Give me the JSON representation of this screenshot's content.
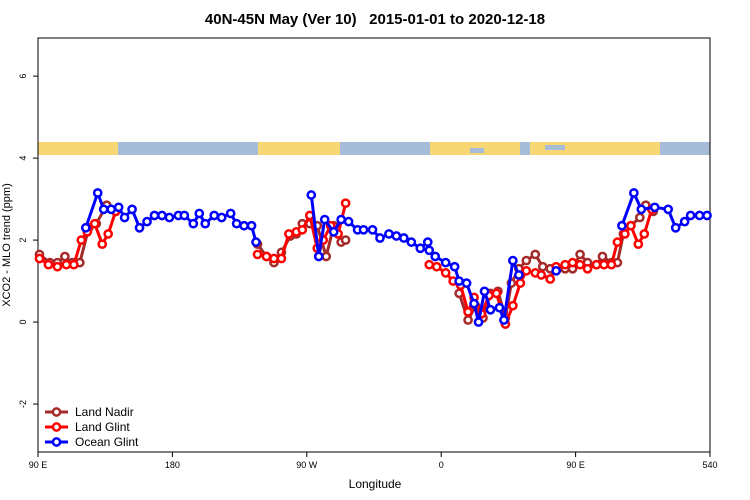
{
  "chart_data": {
    "type": "line",
    "title": "40N-45N May (Ver 10)   2015-01-01 to 2020-12-18",
    "x_label": "Longitude",
    "y_label": "XCO2 - MLO trend (ppm)",
    "xlim": [
      90,
      540
    ],
    "ylim": [
      -3.17,
      6.93
    ],
    "xticks": [
      {
        "value": 90,
        "label": "90 E"
      },
      180,
      {
        "value": 270,
        "label": "90 W"
      },
      {
        "value": 360,
        "label": "0"
      },
      {
        "value": 450,
        "label": "90 E"
      },
      540
    ],
    "yticks": [
      -2,
      0,
      2,
      4,
      6
    ],
    "legend": "bottom-left",
    "series": [
      {
        "name": "Land Nadir",
        "color": "#a52a2a",
        "x": [
          91,
          98,
          103,
          108,
          113,
          118,
          124,
          129,
          136,
          142,
          null,
          237,
          243,
          248,
          253,
          259,
          263,
          267,
          272,
          277,
          283,
          288,
          293,
          296,
          null,
          372,
          378,
          383,
          388,
          393,
          398,
          403,
          407,
          412,
          417,
          423,
          428,
          433,
          438,
          443,
          448,
          453,
          458,
          464,
          468,
          474,
          478,
          482,
          487,
          493,
          497,
          502
        ],
        "values": [
          1.65,
          1.45,
          1.45,
          1.6,
          1.45,
          1.45,
          2.3,
          2.4,
          2.85,
          2.7,
          null,
          1.9,
          1.6,
          1.45,
          1.7,
          2.1,
          2.15,
          2.4,
          2.4,
          2.35,
          1.6,
          2.35,
          1.95,
          2.0,
          null,
          0.7,
          0.05,
          0.4,
          0.1,
          0.7,
          0.75,
          0.1,
          0.95,
          1.3,
          1.5,
          1.65,
          1.35,
          1.3,
          1.3,
          1.3,
          1.3,
          1.65,
          1.45,
          1.4,
          1.6,
          1.45,
          1.45,
          2.15,
          2.35,
          2.55,
          2.85,
          2.7
        ]
      },
      {
        "name": "Land Glint",
        "color": "#ff0000",
        "x": [
          91,
          97,
          103,
          109,
          114,
          119,
          123,
          128,
          133,
          137,
          142,
          null,
          237,
          243,
          248,
          253,
          258,
          263,
          267,
          272,
          277,
          281,
          286,
          291,
          296,
          null,
          352,
          357,
          363,
          368,
          373,
          378,
          382,
          387,
          392,
          397,
          403,
          408,
          413,
          417,
          423,
          427,
          433,
          437,
          443,
          448,
          453,
          458,
          464,
          469,
          474,
          478,
          483,
          487,
          492,
          496,
          501
        ],
        "values": [
          1.55,
          1.4,
          1.35,
          1.4,
          1.4,
          2.0,
          2.2,
          2.4,
          1.9,
          2.15,
          2.7,
          null,
          1.65,
          1.6,
          1.55,
          1.55,
          2.15,
          2.2,
          2.25,
          2.6,
          1.8,
          2.0,
          2.35,
          2.15,
          2.9,
          null,
          1.4,
          1.35,
          1.2,
          1.0,
          0.9,
          0.25,
          0.6,
          0.2,
          0.65,
          0.7,
          -0.05,
          0.4,
          0.95,
          1.25,
          1.2,
          1.15,
          1.05,
          1.35,
          1.4,
          1.45,
          1.4,
          1.3,
          1.4,
          1.4,
          1.4,
          1.95,
          2.15,
          2.35,
          1.9,
          2.15,
          2.75
        ]
      },
      {
        "name": "Ocean Glint",
        "color": "#0000ff",
        "x": [
          122,
          130,
          134,
          139,
          144,
          148,
          153,
          158,
          163,
          168,
          173,
          178,
          184,
          188,
          194,
          198,
          202,
          208,
          213,
          219,
          223,
          228,
          233,
          236,
          null,
          273,
          278,
          282,
          288,
          293,
          298,
          304,
          308,
          314,
          319,
          325,
          330,
          335,
          340,
          346,
          351,
          352,
          356,
          363,
          369,
          372,
          377,
          382,
          385,
          389,
          393,
          399,
          402,
          408,
          412,
          null,
          437,
          null,
          481,
          489,
          494,
          503,
          512,
          517,
          523,
          527,
          533,
          538
        ],
        "values": [
          2.3,
          3.15,
          2.75,
          2.75,
          2.8,
          2.55,
          2.75,
          2.3,
          2.45,
          2.6,
          2.6,
          2.55,
          2.6,
          2.6,
          2.4,
          2.65,
          2.4,
          2.6,
          2.55,
          2.65,
          2.4,
          2.35,
          2.35,
          1.95,
          null,
          3.1,
          1.6,
          2.5,
          2.2,
          2.5,
          2.45,
          2.25,
          2.25,
          2.25,
          2.05,
          2.15,
          2.1,
          2.05,
          1.95,
          1.8,
          1.95,
          1.75,
          1.6,
          1.45,
          1.35,
          1.0,
          0.95,
          0.45,
          0.0,
          0.75,
          0.3,
          0.35,
          0.05,
          1.5,
          1.15,
          null,
          1.25,
          null,
          2.35,
          3.15,
          2.75,
          2.8,
          2.75,
          2.3,
          2.45,
          2.6,
          2.6,
          2.6
        ]
      }
    ]
  }
}
